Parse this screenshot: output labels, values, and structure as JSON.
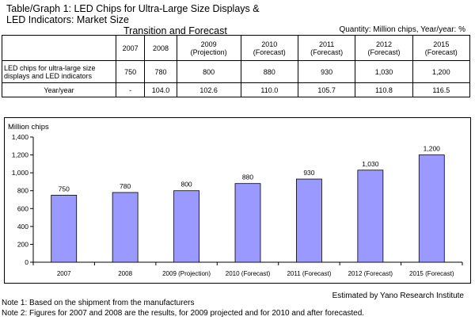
{
  "title_line1": "Table/Graph 1: LED Chips for Ultra-Large Size Displays & LED Indicators: Market Size",
  "title_line2": "Transition and Forecast",
  "unit_note": "Quantity: Million chips, Year/year: %",
  "table": {
    "columns": [
      {
        "year": "2007",
        "sub": ""
      },
      {
        "year": "2008",
        "sub": ""
      },
      {
        "year": "2009",
        "sub": "(Projection)"
      },
      {
        "year": "2010",
        "sub": "(Forecast)"
      },
      {
        "year": "2011",
        "sub": "(Forecast)"
      },
      {
        "year": "2012",
        "sub": "(Forecast)"
      },
      {
        "year": "2015",
        "sub": "(Forecast)"
      }
    ],
    "row1_label_line1": "LED chips for ultra-large size",
    "row1_label_line2": "displays and LED indicators",
    "row1_values": [
      "750",
      "780",
      "800",
      "880",
      "930",
      "1,030",
      "1,200"
    ],
    "row2_label": "Year/year",
    "row2_values": [
      "-",
      "104.0",
      "102.6",
      "110.0",
      "105.7",
      "110.8",
      "116.5"
    ]
  },
  "chart_data": {
    "type": "bar",
    "ylabel": "Million chips",
    "categories": [
      "2007",
      "2008",
      "2009 (Projection)",
      "2010 (Forecast)",
      "2011 (Forecast)",
      "2012 (Forecast)",
      "2015 (Forecast)"
    ],
    "values": [
      750,
      780,
      800,
      880,
      930,
      1030,
      1200
    ],
    "value_labels": [
      "750",
      "780",
      "800",
      "880",
      "930",
      "1,030",
      "1,200"
    ],
    "ylim": [
      0,
      1400
    ],
    "yticks": [
      0,
      200,
      400,
      600,
      800,
      1000,
      1200,
      1400
    ],
    "ytick_labels": [
      "0",
      "200",
      "400",
      "600",
      "800",
      "1,000",
      "1,200",
      "1,400"
    ],
    "grid": false,
    "bar_color": "#9999ff"
  },
  "source": "Estimated by Yano Research Institute",
  "note1": "Note 1: Based on the shipment from the manufacturers",
  "note2": "Note 2: Figures for 2007 and 2008 are the results, for 2009 projected and for 2010 and after forecasted."
}
